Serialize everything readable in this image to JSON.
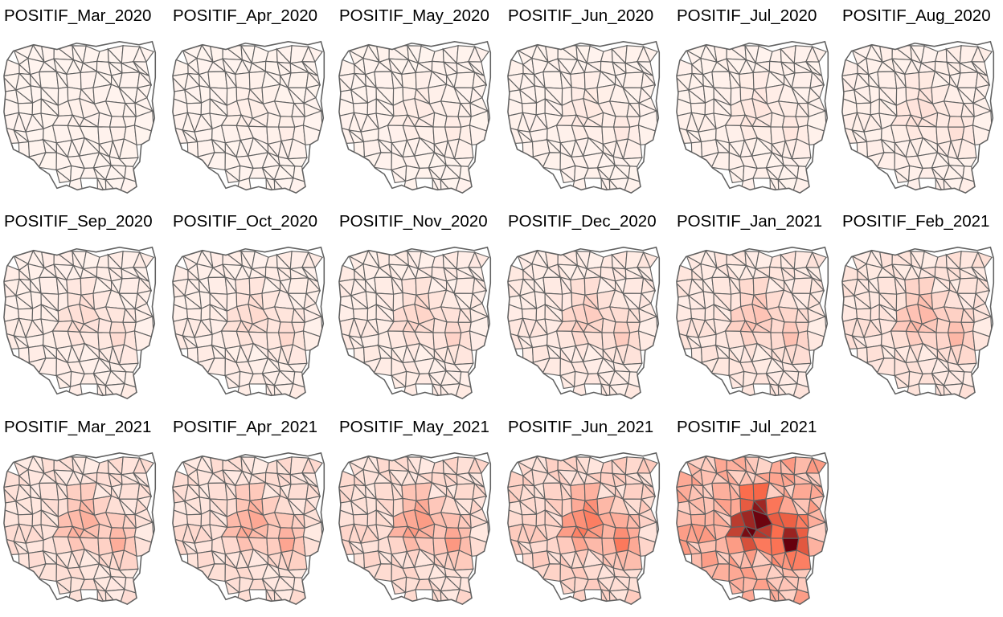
{
  "figure": {
    "panels": [
      {
        "title": "POSITIF_Mar_2020",
        "intensity": 0.02
      },
      {
        "title": "POSITIF_Apr_2020",
        "intensity": 0.03
      },
      {
        "title": "POSITIF_May_2020",
        "intensity": 0.04
      },
      {
        "title": "POSITIF_Jun_2020",
        "intensity": 0.05
      },
      {
        "title": "POSITIF_Jul_2020",
        "intensity": 0.06
      },
      {
        "title": "POSITIF_Aug_2020",
        "intensity": 0.08
      },
      {
        "title": "POSITIF_Sep_2020",
        "intensity": 0.1
      },
      {
        "title": "POSITIF_Oct_2020",
        "intensity": 0.11
      },
      {
        "title": "POSITIF_Nov_2020",
        "intensity": 0.13
      },
      {
        "title": "POSITIF_Dec_2020",
        "intensity": 0.16
      },
      {
        "title": "POSITIF_Jan_2021",
        "intensity": 0.2
      },
      {
        "title": "POSITIF_Feb_2021",
        "intensity": 0.24
      },
      {
        "title": "POSITIF_Mar_2021",
        "intensity": 0.28
      },
      {
        "title": "POSITIF_Apr_2021",
        "intensity": 0.31
      },
      {
        "title": "POSITIF_May_2021",
        "intensity": 0.36
      },
      {
        "title": "POSITIF_Jun_2021",
        "intensity": 0.48
      },
      {
        "title": "POSITIF_Jul_2021",
        "intensity": 1.0
      }
    ],
    "colors": {
      "low": "#fff5f0",
      "mid": "#fb6a4a",
      "high": "#67000d",
      "border": "#616161"
    }
  }
}
